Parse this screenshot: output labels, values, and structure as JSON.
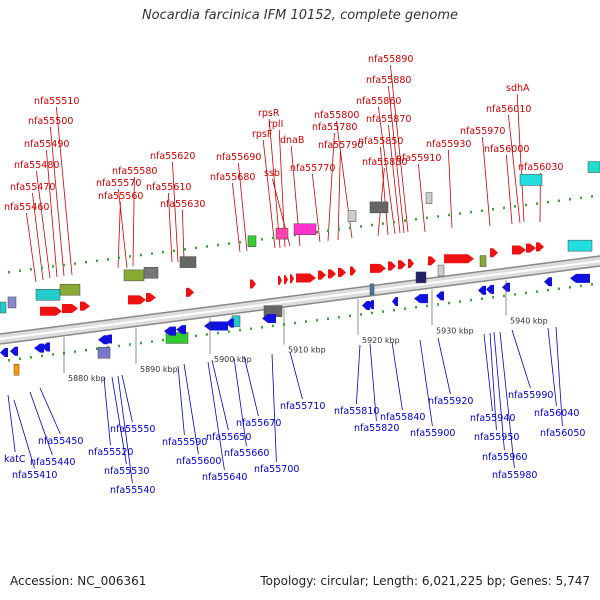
{
  "title": "Nocardia farcinica IFM 10152, complete genome",
  "footer": {
    "accession": "Accession: NC_006361",
    "summary": "Topology: circular; Length: 6,021,225 bp; Genes: 5,747"
  },
  "colors": {
    "top_label": "#cc0000",
    "bottom_label": "#0000cc",
    "forward_gene": "#ee1111",
    "reverse_gene": "#1111dd",
    "backbone": "#999999",
    "tick": "#33aa33"
  },
  "scale_labels": [
    "5880 kbp",
    "5890 kbp",
    "5900 kbp",
    "5910 kbp",
    "5920 kbp",
    "5930 kbp",
    "5940 kbp"
  ],
  "top_genes": [
    "nfa55460",
    "nfa55470",
    "nfa55480",
    "nfa55490",
    "nfa55500",
    "nfa55510",
    "nfa55560",
    "nfa55570",
    "nfa55580",
    "nfa55610",
    "nfa55620",
    "nfa55630",
    "nfa55680",
    "nfa55690",
    "rpsF",
    "rpsR",
    "rplI",
    "ssb",
    "dnaB",
    "nfa55770",
    "nfa55780",
    "nfa55790",
    "nfa55800",
    "nfa55830",
    "nfa55850",
    "nfa55860",
    "nfa55870",
    "nfa55880",
    "nfa55890",
    "nfa55910",
    "nfa55930",
    "nfa55970",
    "nfa56000",
    "nfa56010",
    "sdhA",
    "nfa56030"
  ],
  "bottom_genes": [
    "katC",
    "nfa55410",
    "nfa55440",
    "nfa55450",
    "nfa55520",
    "nfa55530",
    "nfa55540",
    "nfa55550",
    "nfa55590",
    "nfa55600",
    "nfa55640",
    "nfa55650",
    "nfa55660",
    "nfa55670",
    "nfa55700",
    "nfa55710",
    "nfa55810",
    "nfa55820",
    "nfa55840",
    "nfa55900",
    "nfa55920",
    "nfa55940",
    "nfa55950",
    "nfa55960",
    "nfa55980",
    "nfa55990",
    "nfa56040",
    "nfa56050"
  ]
}
